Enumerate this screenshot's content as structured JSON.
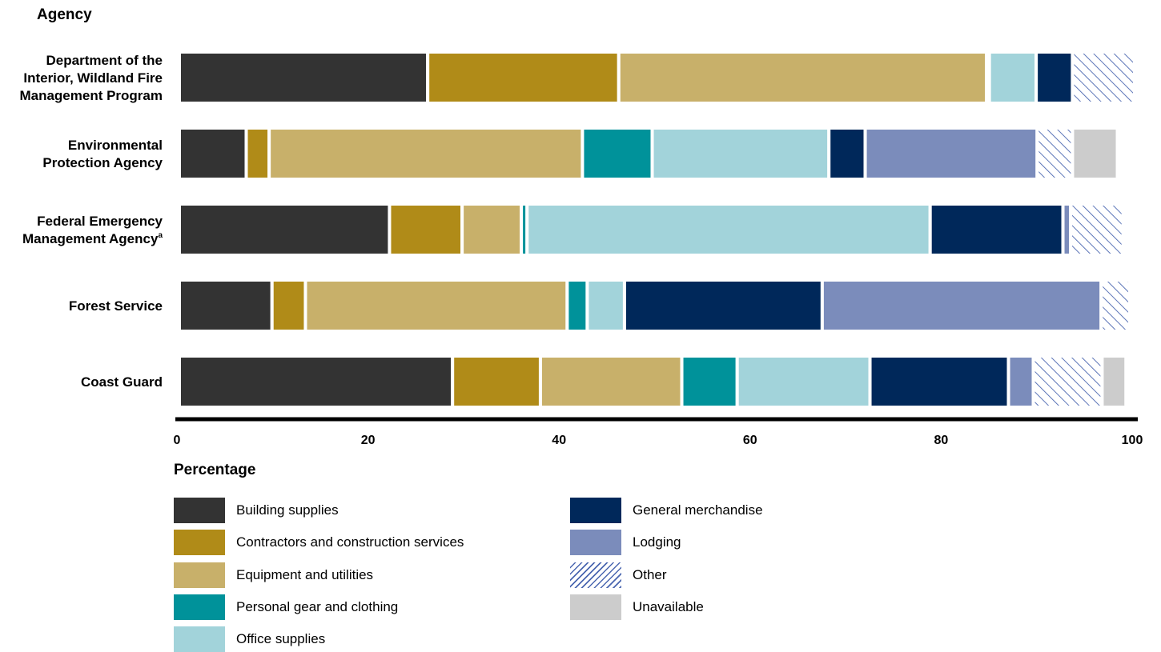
{
  "chart_data": {
    "type": "bar",
    "orientation": "horizontal",
    "stacked": true,
    "ylabel": "Agency",
    "xlabel": "Percentage",
    "xlim": [
      0,
      100
    ],
    "xticks": [
      "0",
      "20",
      "40",
      "60",
      "80",
      "100"
    ],
    "grid": false,
    "legend_position": "bottom",
    "categories": [
      {
        "lines": [
          "Department of the",
          "Interior, Wildland Fire",
          "Management Program"
        ],
        "sup": ""
      },
      {
        "lines": [
          "Environmental",
          "Protection Agency"
        ],
        "sup": ""
      },
      {
        "lines": [
          "Federal Emergency",
          "Management Agency"
        ],
        "sup": "a"
      },
      {
        "lines": [
          "Forest Service"
        ],
        "sup": ""
      },
      {
        "lines": [
          "Coast Guard"
        ],
        "sup": ""
      }
    ],
    "series": [
      {
        "name": "Building supplies",
        "color": "#333333",
        "values": [
          26.0,
          7.0,
          22.0,
          9.7,
          28.6
        ]
      },
      {
        "name": "Contractors and construction services",
        "color": "#b08b18",
        "values": [
          20.0,
          2.4,
          7.6,
          3.5,
          9.2
        ]
      },
      {
        "name": "Equipment and utilities",
        "color": "#c8b06a",
        "values": [
          38.5,
          32.8,
          6.2,
          27.4,
          14.8
        ]
      },
      {
        "name": "Personal gear and clothing",
        "color": "#00929a",
        "values": [
          0.3,
          7.3,
          0.6,
          2.1,
          5.8
        ]
      },
      {
        "name": "Office supplies",
        "color": "#a2d3da",
        "values": [
          4.9,
          18.5,
          42.2,
          3.9,
          13.9
        ]
      },
      {
        "name": "General merchandise",
        "color": "#00285a",
        "values": [
          3.8,
          3.8,
          13.9,
          20.7,
          14.5
        ]
      },
      {
        "name": "Lodging",
        "color": "#7b8cbb",
        "values": [
          0.0,
          18.0,
          0.8,
          29.2,
          2.6
        ]
      },
      {
        "name": "Other",
        "color": "#4a66b0",
        "pattern": "hatch",
        "values": [
          6.5,
          3.7,
          5.5,
          3.0,
          7.2
        ]
      },
      {
        "name": "Unavailable",
        "color": "#cccccc",
        "values": [
          0.0,
          4.7,
          0.0,
          0.0,
          2.5
        ]
      }
    ]
  }
}
